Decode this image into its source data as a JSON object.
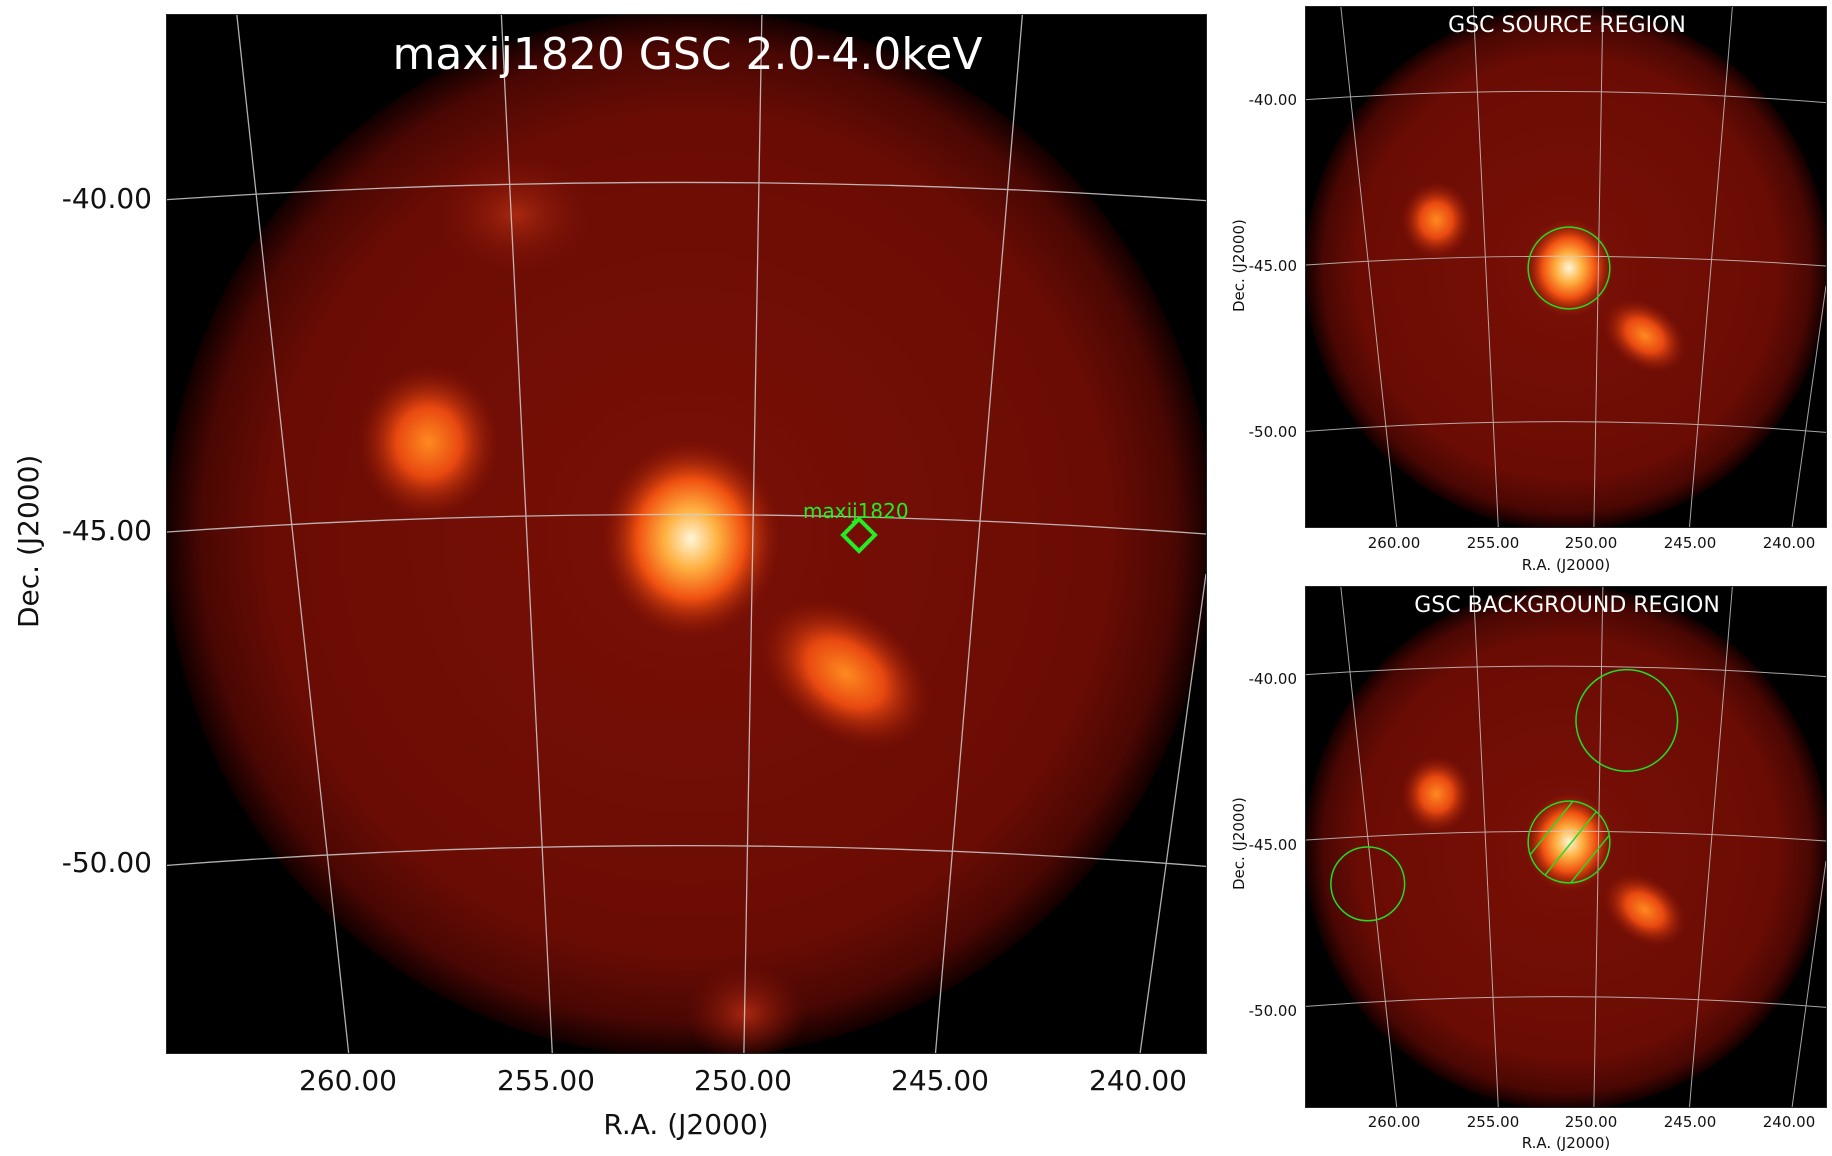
{
  "main": {
    "title": "maxij1820 GSC 2.0-4.0keV",
    "xlabel": "R.A. (J2000)",
    "ylabel": "Dec. (J2000)",
    "yticks": [
      "-40.00",
      "-45.00",
      "-50.00"
    ],
    "xticks": [
      "260.00",
      "255.00",
      "250.00",
      "245.00",
      "240.00"
    ],
    "source_label": "maxij1820"
  },
  "source_panel": {
    "title": "GSC SOURCE REGION",
    "xlabel": "R.A. (J2000)",
    "ylabel": "Dec. (J2000)",
    "yticks": [
      "-40.00",
      "-45.00",
      "-50.00"
    ],
    "xticks": [
      "260.00",
      "255.00",
      "250.00",
      "245.00",
      "240.00"
    ]
  },
  "background_panel": {
    "title": "GSC BACKGROUND REGION",
    "xlabel": "R.A. (J2000)",
    "ylabel": "Dec. (J2000)",
    "yticks": [
      "-40.00",
      "-45.00",
      "-50.00"
    ],
    "xticks": [
      "260.00",
      "255.00",
      "250.00",
      "245.00",
      "240.00"
    ]
  },
  "colors": {
    "image_field": "#6a0c04",
    "hot_core": "#fff6d8",
    "hot_mid": "#ff6a10",
    "region": "#22dd22",
    "grid": "#cfcfcf"
  }
}
